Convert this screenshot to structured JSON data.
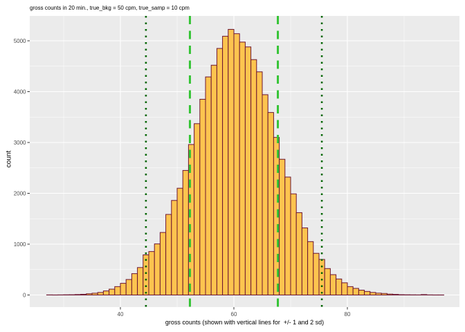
{
  "chart_data": {
    "type": "bar",
    "subtype": "histogram",
    "title": "gross counts in 20 min., true_bkg = 50 cpm, true_samp = 10 cpm",
    "xlabel": "gross counts (shown with vertical lines for  +/- 1 and 2 sd)",
    "ylabel": "count",
    "xlim": [
      24,
      99.6
    ],
    "ylim": [
      0,
      5450
    ],
    "x_major_ticks": [
      40,
      60,
      80
    ],
    "y_major_ticks": [
      0,
      1000,
      2000,
      3000,
      4000,
      5000
    ],
    "x_minor_gridlines": [
      30,
      50,
      70,
      90
    ],
    "y_minor_gridlines": [
      500,
      1500,
      2500,
      3500,
      4500
    ],
    "grid": true,
    "legend_position": "none",
    "bins": {
      "start": 27,
      "bin_width": 1,
      "counts": [
        2,
        1,
        2,
        4,
        5,
        9,
        14,
        25,
        35,
        50,
        80,
        115,
        165,
        230,
        305,
        420,
        540,
        790,
        855,
        1005,
        1230,
        1585,
        1860,
        2100,
        2450,
        2960,
        3370,
        3850,
        4290,
        4520,
        4850,
        5090,
        5225,
        5140,
        4975,
        4880,
        4630,
        4390,
        3940,
        3590,
        3100,
        2670,
        2320,
        1990,
        1620,
        1320,
        1050,
        820,
        700,
        520,
        400,
        315,
        240,
        165,
        130,
        95,
        70,
        50,
        36,
        30,
        18,
        12,
        6,
        4,
        3,
        2,
        8,
        2,
        1,
        1
      ]
    },
    "vlines_1sd": {
      "x": [
        52.25,
        67.75
      ],
      "style": "dashed",
      "color": "#35C435"
    },
    "vlines_2sd": {
      "x": [
        44.5,
        75.5
      ],
      "style": "dotted",
      "color": "#006400"
    }
  },
  "style": {
    "bar_fill": "#FDC44F",
    "bar_stroke": "#6B1430",
    "panel_bg": "#EBEBEB",
    "grid_major": "#FFFFFF",
    "grid_minor": "#FFFFFF",
    "tick_color": "#333333",
    "tick_label_color": "#4D4D4D",
    "axis_title_color": "#000000",
    "page_bg": "#FFFFFF"
  }
}
